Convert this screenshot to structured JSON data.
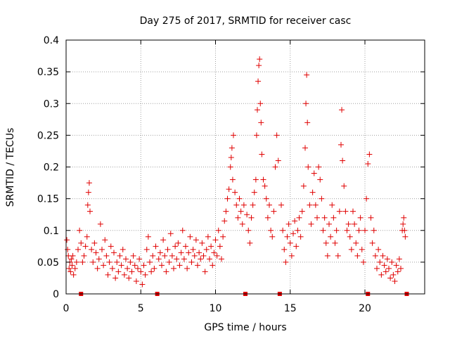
{
  "chart_data": {
    "type": "scatter",
    "title": "Day 275 of 2017, SRMTID for receiver casc",
    "xlabel": "GPS time / hours",
    "ylabel": "SRMTID / TECUs",
    "xlim": [
      0,
      24
    ],
    "ylim": [
      0,
      0.4
    ],
    "x_ticks": [
      0,
      5,
      10,
      15,
      20
    ],
    "y_ticks": [
      0,
      0.05,
      0.1,
      0.15,
      0.2,
      0.25,
      0.3,
      0.35,
      0.4
    ],
    "x_tick_labels": [
      "0",
      "5",
      "10",
      "15",
      "20"
    ],
    "y_tick_labels": [
      "0",
      "0.05",
      "0.1",
      "0.15",
      "0.2",
      "0.25",
      "0.3",
      "0.35",
      "0.4"
    ],
    "grid": true,
    "marker": "+",
    "color": "#e00000",
    "data_gap_markers_x": [
      1.0,
      6.1,
      12.0,
      14.3,
      20.2,
      22.8
    ],
    "series": [
      {
        "name": "SRMTID",
        "points": [
          [
            0.05,
            0.085
          ],
          [
            0.1,
            0.07
          ],
          [
            0.15,
            0.06
          ],
          [
            0.2,
            0.04
          ],
          [
            0.25,
            0.05
          ],
          [
            0.3,
            0.035
          ],
          [
            0.35,
            0.055
          ],
          [
            0.4,
            0.045
          ],
          [
            0.45,
            0.06
          ],
          [
            0.5,
            0.03
          ],
          [
            0.6,
            0.04
          ],
          [
            0.7,
            0.05
          ],
          [
            0.8,
            0.07
          ],
          [
            0.9,
            0.1
          ],
          [
            1.0,
            0.08
          ],
          [
            1.1,
            0.05
          ],
          [
            1.2,
            0.06
          ],
          [
            1.3,
            0.075
          ],
          [
            1.4,
            0.09
          ],
          [
            1.45,
            0.14
          ],
          [
            1.5,
            0.16
          ],
          [
            1.55,
            0.175
          ],
          [
            1.6,
            0.13
          ],
          [
            1.7,
            0.07
          ],
          [
            1.8,
            0.05
          ],
          [
            1.9,
            0.08
          ],
          [
            2.0,
            0.065
          ],
          [
            2.1,
            0.04
          ],
          [
            2.2,
            0.055
          ],
          [
            2.3,
            0.11
          ],
          [
            2.4,
            0.07
          ],
          [
            2.5,
            0.045
          ],
          [
            2.6,
            0.085
          ],
          [
            2.7,
            0.06
          ],
          [
            2.8,
            0.03
          ],
          [
            2.9,
            0.05
          ],
          [
            3.0,
            0.075
          ],
          [
            3.1,
            0.04
          ],
          [
            3.2,
            0.065
          ],
          [
            3.3,
            0.025
          ],
          [
            3.4,
            0.05
          ],
          [
            3.5,
            0.035
          ],
          [
            3.6,
            0.06
          ],
          [
            3.7,
            0.045
          ],
          [
            3.8,
            0.07
          ],
          [
            3.9,
            0.03
          ],
          [
            4.0,
            0.055
          ],
          [
            4.1,
            0.04
          ],
          [
            4.2,
            0.025
          ],
          [
            4.3,
            0.05
          ],
          [
            4.4,
            0.035
          ],
          [
            4.5,
            0.06
          ],
          [
            4.6,
            0.045
          ],
          [
            4.7,
            0.02
          ],
          [
            4.8,
            0.04
          ],
          [
            4.9,
            0.055
          ],
          [
            5.0,
            0.035
          ],
          [
            5.1,
            0.015
          ],
          [
            5.2,
            0.045
          ],
          [
            5.3,
            0.03
          ],
          [
            5.4,
            0.07
          ],
          [
            5.5,
            0.09
          ],
          [
            5.6,
            0.05
          ],
          [
            5.7,
            0.035
          ],
          [
            5.8,
            0.06
          ],
          [
            5.9,
            0.04
          ],
          [
            6.0,
            0.075
          ],
          [
            6.2,
            0.055
          ],
          [
            6.3,
            0.065
          ],
          [
            6.4,
            0.045
          ],
          [
            6.5,
            0.085
          ],
          [
            6.6,
            0.06
          ],
          [
            6.7,
            0.035
          ],
          [
            6.8,
            0.07
          ],
          [
            6.9,
            0.05
          ],
          [
            7.0,
            0.095
          ],
          [
            7.1,
            0.06
          ],
          [
            7.2,
            0.04
          ],
          [
            7.3,
            0.075
          ],
          [
            7.4,
            0.055
          ],
          [
            7.5,
            0.08
          ],
          [
            7.6,
            0.045
          ],
          [
            7.7,
            0.065
          ],
          [
            7.8,
            0.1
          ],
          [
            7.9,
            0.055
          ],
          [
            8.0,
            0.075
          ],
          [
            8.1,
            0.04
          ],
          [
            8.2,
            0.065
          ],
          [
            8.3,
            0.09
          ],
          [
            8.4,
            0.05
          ],
          [
            8.5,
            0.07
          ],
          [
            8.6,
            0.06
          ],
          [
            8.7,
            0.085
          ],
          [
            8.8,
            0.045
          ],
          [
            8.9,
            0.065
          ],
          [
            9.0,
            0.055
          ],
          [
            9.1,
            0.08
          ],
          [
            9.2,
            0.06
          ],
          [
            9.3,
            0.035
          ],
          [
            9.4,
            0.07
          ],
          [
            9.5,
            0.09
          ],
          [
            9.6,
            0.055
          ],
          [
            9.7,
            0.075
          ],
          [
            9.8,
            0.045
          ],
          [
            9.9,
            0.065
          ],
          [
            10.0,
            0.085
          ],
          [
            10.1,
            0.06
          ],
          [
            10.2,
            0.1
          ],
          [
            10.3,
            0.075
          ],
          [
            10.4,
            0.055
          ],
          [
            10.5,
            0.09
          ],
          [
            10.6,
            0.115
          ],
          [
            10.7,
            0.13
          ],
          [
            10.8,
            0.15
          ],
          [
            10.9,
            0.165
          ],
          [
            11.0,
            0.2
          ],
          [
            11.05,
            0.215
          ],
          [
            11.1,
            0.23
          ],
          [
            11.15,
            0.18
          ],
          [
            11.2,
            0.25
          ],
          [
            11.3,
            0.16
          ],
          [
            11.4,
            0.14
          ],
          [
            11.5,
            0.12
          ],
          [
            11.6,
            0.15
          ],
          [
            11.7,
            0.13
          ],
          [
            11.8,
            0.11
          ],
          [
            11.9,
            0.14
          ],
          [
            12.1,
            0.125
          ],
          [
            12.2,
            0.1
          ],
          [
            12.3,
            0.08
          ],
          [
            12.4,
            0.12
          ],
          [
            12.5,
            0.14
          ],
          [
            12.6,
            0.16
          ],
          [
            12.7,
            0.18
          ],
          [
            12.75,
            0.25
          ],
          [
            12.8,
            0.29
          ],
          [
            12.85,
            0.335
          ],
          [
            12.9,
            0.36
          ],
          [
            12.95,
            0.37
          ],
          [
            13.0,
            0.3
          ],
          [
            13.05,
            0.27
          ],
          [
            13.1,
            0.22
          ],
          [
            13.2,
            0.18
          ],
          [
            13.3,
            0.17
          ],
          [
            13.4,
            0.15
          ],
          [
            13.5,
            0.12
          ],
          [
            13.6,
            0.14
          ],
          [
            13.7,
            0.1
          ],
          [
            13.8,
            0.09
          ],
          [
            13.9,
            0.13
          ],
          [
            14.0,
            0.2
          ],
          [
            14.1,
            0.25
          ],
          [
            14.2,
            0.21
          ],
          [
            14.4,
            0.14
          ],
          [
            14.5,
            0.1
          ],
          [
            14.6,
            0.07
          ],
          [
            14.7,
            0.05
          ],
          [
            14.8,
            0.09
          ],
          [
            14.9,
            0.11
          ],
          [
            15.0,
            0.08
          ],
          [
            15.1,
            0.06
          ],
          [
            15.2,
            0.095
          ],
          [
            15.3,
            0.115
          ],
          [
            15.4,
            0.075
          ],
          [
            15.5,
            0.1
          ],
          [
            15.6,
            0.12
          ],
          [
            15.7,
            0.09
          ],
          [
            15.8,
            0.13
          ],
          [
            15.9,
            0.17
          ],
          [
            16.0,
            0.23
          ],
          [
            16.05,
            0.3
          ],
          [
            16.1,
            0.345
          ],
          [
            16.15,
            0.27
          ],
          [
            16.2,
            0.2
          ],
          [
            16.3,
            0.14
          ],
          [
            16.4,
            0.11
          ],
          [
            16.5,
            0.16
          ],
          [
            16.6,
            0.19
          ],
          [
            16.7,
            0.14
          ],
          [
            16.8,
            0.12
          ],
          [
            16.9,
            0.2
          ],
          [
            17.0,
            0.18
          ],
          [
            17.1,
            0.15
          ],
          [
            17.2,
            0.1
          ],
          [
            17.3,
            0.12
          ],
          [
            17.4,
            0.08
          ],
          [
            17.5,
            0.06
          ],
          [
            17.6,
            0.11
          ],
          [
            17.7,
            0.09
          ],
          [
            17.8,
            0.14
          ],
          [
            17.9,
            0.12
          ],
          [
            18.0,
            0.08
          ],
          [
            18.1,
            0.1
          ],
          [
            18.2,
            0.06
          ],
          [
            18.3,
            0.13
          ],
          [
            18.4,
            0.235
          ],
          [
            18.45,
            0.29
          ],
          [
            18.5,
            0.21
          ],
          [
            18.6,
            0.17
          ],
          [
            18.7,
            0.13
          ],
          [
            18.8,
            0.1
          ],
          [
            18.9,
            0.11
          ],
          [
            19.0,
            0.09
          ],
          [
            19.1,
            0.07
          ],
          [
            19.2,
            0.13
          ],
          [
            19.3,
            0.11
          ],
          [
            19.4,
            0.08
          ],
          [
            19.5,
            0.06
          ],
          [
            19.6,
            0.1
          ],
          [
            19.7,
            0.12
          ],
          [
            19.8,
            0.07
          ],
          [
            19.9,
            0.05
          ],
          [
            20.0,
            0.1
          ],
          [
            20.1,
            0.15
          ],
          [
            20.2,
            0.205
          ],
          [
            20.3,
            0.22
          ],
          [
            20.4,
            0.12
          ],
          [
            20.5,
            0.08
          ],
          [
            20.6,
            0.1
          ],
          [
            20.7,
            0.06
          ],
          [
            20.8,
            0.04
          ],
          [
            20.9,
            0.07
          ],
          [
            21.0,
            0.05
          ],
          [
            21.1,
            0.03
          ],
          [
            21.2,
            0.06
          ],
          [
            21.3,
            0.045
          ],
          [
            21.4,
            0.035
          ],
          [
            21.5,
            0.055
          ],
          [
            21.6,
            0.04
          ],
          [
            21.7,
            0.025
          ],
          [
            21.8,
            0.05
          ],
          [
            21.9,
            0.03
          ],
          [
            22.0,
            0.02
          ],
          [
            22.1,
            0.045
          ],
          [
            22.2,
            0.035
          ],
          [
            22.3,
            0.055
          ],
          [
            22.4,
            0.04
          ],
          [
            22.5,
            0.1
          ],
          [
            22.55,
            0.11
          ],
          [
            22.6,
            0.12
          ],
          [
            22.65,
            0.1
          ],
          [
            22.7,
            0.09
          ]
        ]
      }
    ]
  }
}
